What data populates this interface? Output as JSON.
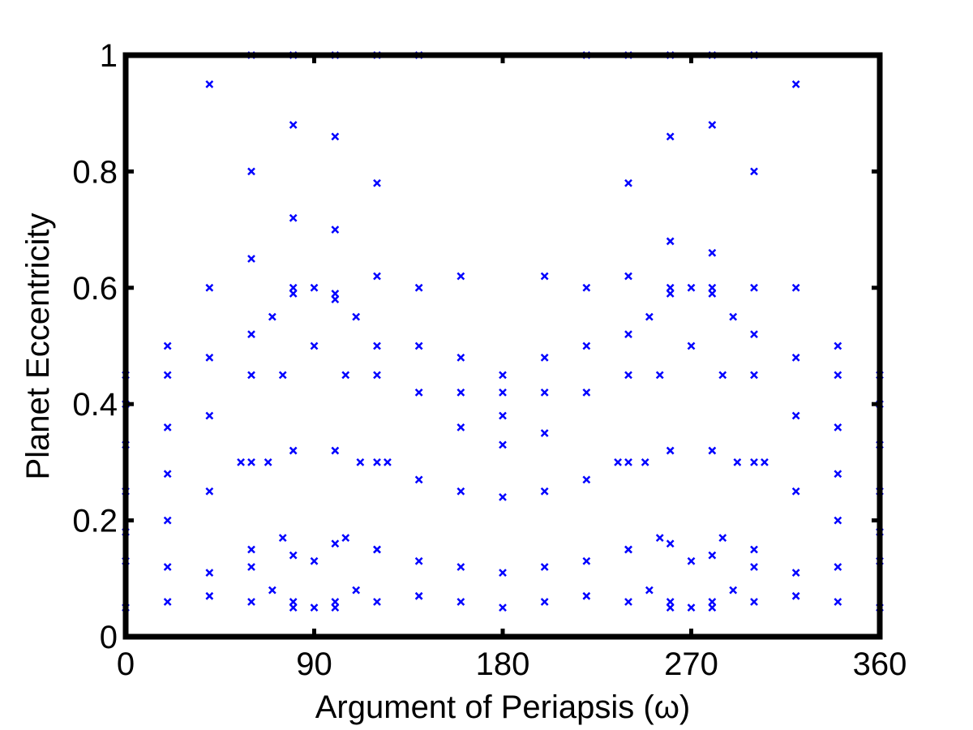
{
  "chart_data": {
    "type": "scatter",
    "x_label": "Argument of Periapsis (ω)",
    "y_label": "Planet Eccentricity",
    "xlim": [
      0,
      360
    ],
    "xticks": [
      0,
      90,
      180,
      270,
      360
    ],
    "ylim": [
      0,
      1
    ],
    "yticks": [
      0,
      0.2,
      0.4,
      0.6,
      0.8,
      1
    ],
    "grid": false,
    "series": [
      {
        "color": "#0000ff",
        "x": [
          0,
          20,
          40,
          60,
          80,
          100,
          120,
          140,
          160,
          180,
          200,
          220,
          240,
          260,
          280,
          300,
          320,
          340,
          360,
          0,
          20,
          40,
          60,
          80,
          100,
          120,
          140,
          160,
          180,
          200,
          220,
          240,
          260,
          280,
          300,
          320,
          340,
          360,
          0,
          20,
          40,
          60,
          80,
          100,
          120,
          140,
          160,
          180,
          200,
          220,
          240,
          260,
          280,
          300,
          320,
          340,
          360,
          0,
          20,
          40,
          60,
          80,
          100,
          120,
          140,
          160,
          180,
          200,
          220,
          240,
          260,
          280,
          300,
          320,
          340,
          360,
          0,
          20,
          40,
          60,
          80,
          100,
          120,
          140,
          160,
          180,
          200,
          220,
          240,
          260,
          280,
          300,
          320,
          340,
          360,
          0,
          20,
          40,
          60,
          80,
          100,
          120,
          140,
          160,
          180,
          200,
          220,
          240,
          260,
          280,
          300,
          320,
          340,
          360,
          0,
          20,
          40,
          60,
          80,
          100,
          120,
          140,
          160,
          180,
          200,
          220,
          240,
          260,
          280,
          300,
          320,
          340,
          360,
          55,
          60,
          70,
          80,
          90,
          100,
          110,
          120,
          125,
          120,
          110,
          100,
          90,
          80,
          70,
          60,
          68,
          75,
          90,
          105,
          112,
          105,
          90,
          75,
          235,
          240,
          250,
          260,
          270,
          280,
          290,
          300,
          305,
          300,
          290,
          280,
          270,
          260,
          250,
          240,
          248,
          255,
          270,
          285,
          292,
          285,
          270,
          255
        ],
        "y": [
          0.45,
          0.5,
          0.95,
          1,
          1,
          1,
          1,
          1,
          0.62,
          0.45,
          0.62,
          1,
          1,
          1,
          1,
          1,
          0.95,
          0.5,
          0.45,
          0.4,
          0.45,
          0.6,
          0.8,
          0.88,
          0.86,
          0.78,
          0.6,
          0.48,
          0.42,
          0.48,
          0.6,
          0.78,
          0.86,
          0.88,
          0.8,
          0.6,
          0.45,
          0.4,
          0.33,
          0.36,
          0.48,
          0.65,
          0.72,
          0.7,
          0.62,
          0.5,
          0.42,
          0.38,
          0.42,
          0.5,
          0.62,
          0.68,
          0.66,
          0.6,
          0.48,
          0.36,
          0.33,
          0.25,
          0.28,
          0.38,
          0.52,
          0.6,
          0.58,
          0.5,
          0.42,
          0.36,
          0.33,
          0.35,
          0.42,
          0.52,
          0.6,
          0.6,
          0.52,
          0.38,
          0.28,
          0.25,
          0.18,
          0.2,
          0.25,
          0.3,
          0.32,
          0.32,
          0.3,
          0.27,
          0.25,
          0.24,
          0.25,
          0.27,
          0.3,
          0.32,
          0.32,
          0.3,
          0.25,
          0.2,
          0.18,
          0.13,
          0.12,
          0.11,
          0.12,
          0.14,
          0.16,
          0.15,
          0.13,
          0.12,
          0.11,
          0.12,
          0.13,
          0.15,
          0.16,
          0.14,
          0.12,
          0.11,
          0.12,
          0.13,
          0.05,
          0.06,
          0.07,
          0.06,
          0.05,
          0.05,
          0.06,
          0.07,
          0.06,
          0.05,
          0.06,
          0.07,
          0.06,
          0.05,
          0.05,
          0.06,
          0.07,
          0.06,
          0.05,
          0.3,
          0.45,
          0.55,
          0.59,
          0.6,
          0.59,
          0.55,
          0.45,
          0.3,
          0.15,
          0.08,
          0.06,
          0.05,
          0.06,
          0.08,
          0.15,
          0.3,
          0.45,
          0.5,
          0.45,
          0.3,
          0.17,
          0.13,
          0.17,
          0.3,
          0.45,
          0.55,
          0.59,
          0.6,
          0.59,
          0.55,
          0.45,
          0.3,
          0.15,
          0.08,
          0.06,
          0.05,
          0.06,
          0.08,
          0.15,
          0.3,
          0.45,
          0.5,
          0.45,
          0.3,
          0.17,
          0.13,
          0.17
        ]
      }
    ]
  }
}
